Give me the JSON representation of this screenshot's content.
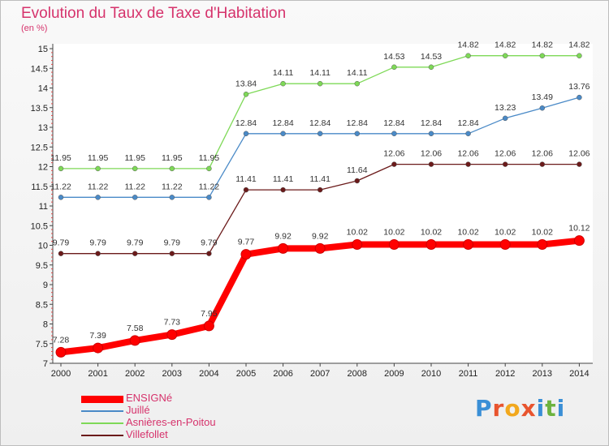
{
  "title": "Evolution du Taux de Taxe d'Habitation",
  "unit": "(en %)",
  "logo": {
    "text": "Proxiti",
    "letter_colors": [
      "#3a8fd6",
      "#e8542e",
      "#f2a81d",
      "#e8542e",
      "#3a8fd6",
      "#6db33f",
      "#3a8fd6"
    ]
  },
  "chart_data": {
    "type": "line",
    "title": "Evolution du Taux de Taxe d'Habitation",
    "ylabel": "(en %)",
    "xlabel": "",
    "x": [
      "2000",
      "2001",
      "2002",
      "2003",
      "2004",
      "2005",
      "2006",
      "2007",
      "2008",
      "2009",
      "2010",
      "2011",
      "2012",
      "2013",
      "2014"
    ],
    "ylim": [
      7,
      15
    ],
    "yticks": [
      "7",
      "7.5",
      "8",
      "8.5",
      "9",
      "9.5",
      "10",
      "10.5",
      "11",
      "11.5",
      "12",
      "12.5",
      "13",
      "13.5",
      "14",
      "14.5",
      "15"
    ],
    "grid": false,
    "legend_position": "bottom-left",
    "series": [
      {
        "name": "ENSIGNé",
        "color": "#ff0000",
        "values": [
          7.28,
          7.39,
          7.58,
          7.73,
          7.95,
          9.77,
          9.92,
          9.92,
          10.02,
          10.02,
          10.02,
          10.02,
          10.02,
          10.02,
          10.12
        ],
        "labels": [
          "7.28",
          "7.39",
          "7.58",
          "7.73",
          "7.95",
          "9.77",
          "9.92",
          "9.92",
          "10.02",
          "10.02",
          "10.02",
          "10.02",
          "10.02",
          "10.02",
          "10.12"
        ]
      },
      {
        "name": "Juillé",
        "color": "#4a8ac7",
        "values": [
          11.22,
          11.22,
          11.22,
          11.22,
          11.22,
          12.84,
          12.84,
          12.84,
          12.84,
          12.84,
          12.84,
          12.84,
          13.23,
          13.49,
          13.76
        ],
        "labels": [
          "11.22",
          "11.22",
          "11.22",
          "11.22",
          "11.22",
          "12.84",
          "12.84",
          "12.84",
          "12.84",
          "12.84",
          "12.84",
          "12.84",
          "13.23",
          "13.49",
          "13.76"
        ]
      },
      {
        "name": "Asnières-en-Poitou",
        "color": "#7ed957",
        "values": [
          11.95,
          11.95,
          11.95,
          11.95,
          11.95,
          13.84,
          14.11,
          14.11,
          14.11,
          14.53,
          14.53,
          14.82,
          14.82,
          14.82,
          14.82
        ],
        "labels": [
          "11.95",
          "11.95",
          "11.95",
          "11.95",
          "11.95",
          "13.84",
          "14.11",
          "14.11",
          "14.11",
          "14.53",
          "14.53",
          "14.82",
          "14.82",
          "14.82",
          "14.82"
        ]
      },
      {
        "name": "Villefollet",
        "color": "#6b1a1a",
        "values": [
          9.79,
          9.79,
          9.79,
          9.79,
          9.79,
          11.41,
          11.41,
          11.41,
          11.64,
          12.06,
          12.06,
          12.06,
          12.06,
          12.06,
          12.06
        ],
        "labels": [
          "9.79",
          "9.79",
          "9.79",
          "9.79",
          "9.79",
          "11.41",
          "11.41",
          "11.41",
          "11.64",
          "12.06",
          "12.06",
          "12.06",
          "12.06",
          "12.06",
          "12.06"
        ]
      }
    ]
  }
}
